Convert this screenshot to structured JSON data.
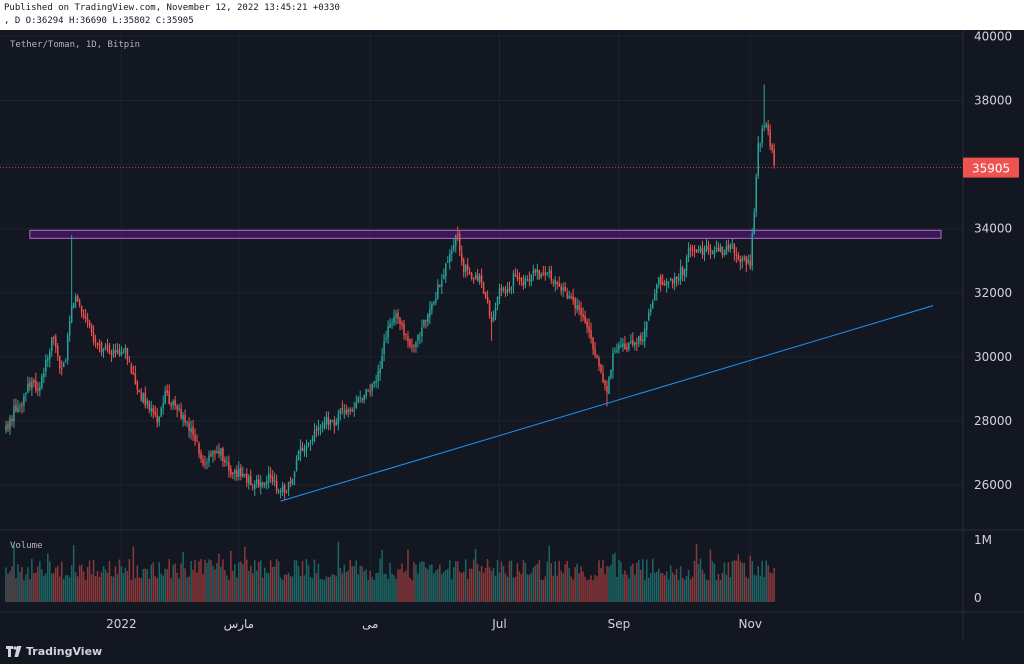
{
  "header": {
    "line1": "Published on TradingView.com, November 12, 2022 13:45:21 +0330",
    "line2": ", D O:36294 H:36690 L:35802 C:35905"
  },
  "footer": {
    "logo_text": "TradingView"
  },
  "chart_data": {
    "type": "candlestick",
    "symbol_label": "Tether/Toman, 1D, Bitpin",
    "volume_label": "Volume",
    "last_price": 35905,
    "last_price_label": "35905",
    "y_ticks": [
      26000,
      28000,
      30000,
      32000,
      34000,
      36000,
      38000,
      40000
    ],
    "y_tick_labels": [
      "26000",
      "28000",
      "30000",
      "32000",
      "34000",
      "36000",
      "38000",
      "40000"
    ],
    "volume_ticks": [
      "1M",
      "0"
    ],
    "x_tick_labels": [
      "2022",
      "مارس",
      "می",
      "Jul",
      "Sep",
      "Nov"
    ],
    "ylim": [
      24600,
      40200
    ],
    "resistance_zone": {
      "low": 33700,
      "high": 33950
    },
    "trendline": {
      "start": 25500,
      "end": 31600
    },
    "price_path": [
      {
        "i": 0,
        "p": 27700
      },
      {
        "i": 4,
        "p": 28300
      },
      {
        "i": 8,
        "p": 28600
      },
      {
        "i": 12,
        "p": 29200
      },
      {
        "i": 16,
        "p": 29000
      },
      {
        "i": 20,
        "p": 29800
      },
      {
        "i": 24,
        "p": 30700
      },
      {
        "i": 27,
        "p": 29500
      },
      {
        "i": 30,
        "p": 29900
      },
      {
        "i": 33,
        "p": 31700
      },
      {
        "i": 36,
        "p": 31800
      },
      {
        "i": 40,
        "p": 31200
      },
      {
        "i": 44,
        "p": 30600
      },
      {
        "i": 48,
        "p": 30300
      },
      {
        "i": 52,
        "p": 30200
      },
      {
        "i": 56,
        "p": 30100
      },
      {
        "i": 60,
        "p": 30300
      },
      {
        "i": 64,
        "p": 29300
      },
      {
        "i": 68,
        "p": 28800
      },
      {
        "i": 72,
        "p": 28400
      },
      {
        "i": 76,
        "p": 28000
      },
      {
        "i": 80,
        "p": 28800
      },
      {
        "i": 84,
        "p": 28500
      },
      {
        "i": 88,
        "p": 28200
      },
      {
        "i": 92,
        "p": 27800
      },
      {
        "i": 96,
        "p": 27300
      },
      {
        "i": 100,
        "p": 26600
      },
      {
        "i": 104,
        "p": 26900
      },
      {
        "i": 108,
        "p": 27000
      },
      {
        "i": 112,
        "p": 26500
      },
      {
        "i": 116,
        "p": 26400
      },
      {
        "i": 120,
        "p": 26200
      },
      {
        "i": 124,
        "p": 26000
      },
      {
        "i": 128,
        "p": 26100
      },
      {
        "i": 132,
        "p": 26200
      },
      {
        "i": 136,
        "p": 25900
      },
      {
        "i": 140,
        "p": 25900
      },
      {
        "i": 144,
        "p": 26100
      },
      {
        "i": 148,
        "p": 27200
      },
      {
        "i": 152,
        "p": 27300
      },
      {
        "i": 156,
        "p": 27800
      },
      {
        "i": 160,
        "p": 28000
      },
      {
        "i": 164,
        "p": 27900
      },
      {
        "i": 168,
        "p": 28200
      },
      {
        "i": 172,
        "p": 28300
      },
      {
        "i": 176,
        "p": 28600
      },
      {
        "i": 180,
        "p": 28800
      },
      {
        "i": 184,
        "p": 29000
      },
      {
        "i": 188,
        "p": 29800
      },
      {
        "i": 192,
        "p": 31000
      },
      {
        "i": 196,
        "p": 31300
      },
      {
        "i": 200,
        "p": 30700
      },
      {
        "i": 204,
        "p": 30400
      },
      {
        "i": 208,
        "p": 30700
      },
      {
        "i": 212,
        "p": 31400
      },
      {
        "i": 216,
        "p": 31900
      },
      {
        "i": 220,
        "p": 32600
      },
      {
        "i": 224,
        "p": 33300
      },
      {
        "i": 227,
        "p": 33800
      },
      {
        "i": 230,
        "p": 32800
      },
      {
        "i": 234,
        "p": 32500
      },
      {
        "i": 238,
        "p": 32400
      },
      {
        "i": 242,
        "p": 31700
      },
      {
        "i": 244,
        "p": 31100
      },
      {
        "i": 248,
        "p": 32000
      },
      {
        "i": 252,
        "p": 32100
      },
      {
        "i": 256,
        "p": 32600
      },
      {
        "i": 260,
        "p": 32300
      },
      {
        "i": 264,
        "p": 32600
      },
      {
        "i": 268,
        "p": 32600
      },
      {
        "i": 272,
        "p": 32600
      },
      {
        "i": 276,
        "p": 32300
      },
      {
        "i": 280,
        "p": 32100
      },
      {
        "i": 284,
        "p": 31800
      },
      {
        "i": 288,
        "p": 31500
      },
      {
        "i": 292,
        "p": 30800
      },
      {
        "i": 296,
        "p": 30200
      },
      {
        "i": 300,
        "p": 29300
      },
      {
        "i": 302,
        "p": 28900
      },
      {
        "i": 305,
        "p": 30000
      },
      {
        "i": 308,
        "p": 30300
      },
      {
        "i": 312,
        "p": 30200
      },
      {
        "i": 316,
        "p": 30500
      },
      {
        "i": 320,
        "p": 30600
      },
      {
        "i": 324,
        "p": 31500
      },
      {
        "i": 328,
        "p": 32500
      },
      {
        "i": 332,
        "p": 32300
      },
      {
        "i": 336,
        "p": 32400
      },
      {
        "i": 340,
        "p": 32700
      },
      {
        "i": 344,
        "p": 33400
      },
      {
        "i": 348,
        "p": 33300
      },
      {
        "i": 352,
        "p": 33300
      },
      {
        "i": 356,
        "p": 33400
      },
      {
        "i": 360,
        "p": 33300
      },
      {
        "i": 364,
        "p": 33500
      },
      {
        "i": 368,
        "p": 33100
      },
      {
        "i": 372,
        "p": 32900
      },
      {
        "i": 374,
        "p": 32900
      },
      {
        "i": 376,
        "p": 34600
      },
      {
        "i": 378,
        "p": 36500
      },
      {
        "i": 381,
        "p": 37300
      },
      {
        "i": 383,
        "p": 36900
      },
      {
        "i": 385,
        "p": 36300
      },
      {
        "i": 386,
        "p": 35905
      }
    ],
    "colors": {
      "up": "#26a69a",
      "down": "#ef5350",
      "zone_fill": "#6a1b9a",
      "zone_stroke": "#ba68c8",
      "trendline": "#2196f3",
      "price_tag": "#ef5350",
      "background": "#131722",
      "grid": "#1e2230"
    }
  }
}
